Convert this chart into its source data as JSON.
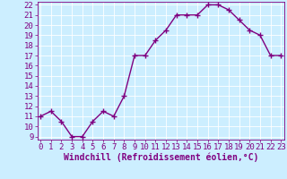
{
  "x": [
    0,
    1,
    2,
    3,
    4,
    5,
    6,
    7,
    8,
    9,
    10,
    11,
    12,
    13,
    14,
    15,
    16,
    17,
    18,
    19,
    20,
    21,
    22,
    23
  ],
  "y": [
    11,
    11.5,
    10.5,
    9,
    9,
    10.5,
    11.5,
    11,
    13,
    17,
    17,
    18.5,
    19.5,
    21,
    21,
    21,
    22,
    22,
    21.5,
    20.5,
    19.5,
    19,
    17,
    17
  ],
  "line_color": "#800080",
  "marker_color": "#800080",
  "bg_color": "#cceeff",
  "grid_color": "#aaddee",
  "xlabel": "Windchill (Refroidissement éolien,°C)",
  "ylim_min": 9,
  "ylim_max": 22,
  "xlim_min": 0,
  "xlim_max": 23,
  "yticks": [
    9,
    10,
    11,
    12,
    13,
    14,
    15,
    16,
    17,
    18,
    19,
    20,
    21,
    22
  ],
  "xticks": [
    0,
    1,
    2,
    3,
    4,
    5,
    6,
    7,
    8,
    9,
    10,
    11,
    12,
    13,
    14,
    15,
    16,
    17,
    18,
    19,
    20,
    21,
    22,
    23
  ],
  "xlabel_fontsize": 7,
  "tick_fontsize": 6.5,
  "line_width": 1.0,
  "marker_size": 4
}
